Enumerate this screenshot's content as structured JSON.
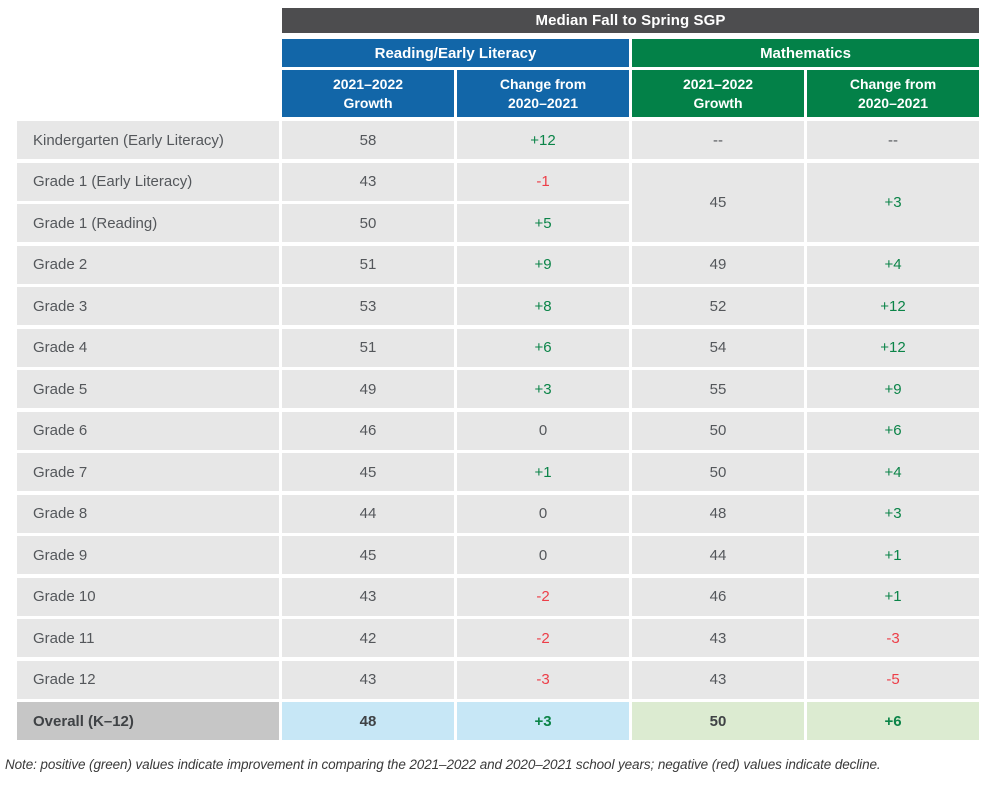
{
  "table": {
    "title": "Median Fall to Spring SGP",
    "groups": [
      {
        "label": "Reading/Early Literacy"
      },
      {
        "label": "Mathematics"
      }
    ],
    "columns": [
      {
        "line1": "2021–2022",
        "line2": "Growth"
      },
      {
        "line1": "Change from",
        "line2": "2020–2021"
      },
      {
        "line1": "2021–2022",
        "line2": "Growth"
      },
      {
        "line1": "Change from",
        "line2": "2020–2021"
      }
    ],
    "rows": [
      {
        "label": "Kindergarten (Early Literacy)",
        "reading_growth": "58",
        "reading_change": "+12",
        "math_growth": "--",
        "math_change": "--"
      },
      {
        "label": "Grade 1 (Early Literacy)",
        "reading_growth": "43",
        "reading_change": "-1"
      },
      {
        "label": "Grade 1 (Reading)",
        "reading_growth": "50",
        "reading_change": "+5"
      },
      {
        "label": "Grade 2",
        "reading_growth": "51",
        "reading_change": "+9",
        "math_growth": "49",
        "math_change": "+4"
      },
      {
        "label": "Grade 3",
        "reading_growth": "53",
        "reading_change": "+8",
        "math_growth": "52",
        "math_change": "+12"
      },
      {
        "label": "Grade 4",
        "reading_growth": "51",
        "reading_change": "+6",
        "math_growth": "54",
        "math_change": "+12"
      },
      {
        "label": "Grade 5",
        "reading_growth": "49",
        "reading_change": "+3",
        "math_growth": "55",
        "math_change": "+9"
      },
      {
        "label": "Grade 6",
        "reading_growth": "46",
        "reading_change": "0",
        "math_growth": "50",
        "math_change": "+6"
      },
      {
        "label": "Grade 7",
        "reading_growth": "45",
        "reading_change": "+1",
        "math_growth": "50",
        "math_change": "+4"
      },
      {
        "label": "Grade 8",
        "reading_growth": "44",
        "reading_change": "0",
        "math_growth": "48",
        "math_change": "+3"
      },
      {
        "label": "Grade 9",
        "reading_growth": "45",
        "reading_change": "0",
        "math_growth": "44",
        "math_change": "+1"
      },
      {
        "label": "Grade 10",
        "reading_growth": "43",
        "reading_change": "-2",
        "math_growth": "46",
        "math_change": "+1"
      },
      {
        "label": "Grade 11",
        "reading_growth": "42",
        "reading_change": "-2",
        "math_growth": "43",
        "math_change": "-3"
      },
      {
        "label": "Grade 12",
        "reading_growth": "43",
        "reading_change": "-3",
        "math_growth": "43",
        "math_change": "-5"
      }
    ],
    "merged_math": {
      "growth": "45",
      "change": "+3"
    },
    "overall": {
      "label": "Overall (K–12)",
      "reading_growth": "48",
      "reading_change": "+3",
      "math_growth": "50",
      "math_change": "+6"
    }
  },
  "note": "Note: positive (green) values indicate improvement in comparing the 2021–2022 and 2020–2021 school years; negative (red) values indicate decline.",
  "colors": {
    "title_bar": "#4d4d4f",
    "reading_blue": "#1266a8",
    "math_green": "#038148",
    "positive_text": "#0b8448",
    "negative_text": "#ed3e48",
    "row_bg": "#e7e7e7",
    "overall_label_bg": "#c6c6c6",
    "overall_reading_bg": "#c7e7f6",
    "overall_math_bg": "#dcebd1"
  },
  "chart_data": {
    "type": "table",
    "title": "Median Fall to Spring SGP",
    "column_groups": [
      "Reading/Early Literacy",
      "Mathematics"
    ],
    "columns": [
      "2021–2022 Growth",
      "Change from 2020–2021",
      "2021–2022 Growth",
      "Change from 2020–2021"
    ],
    "rows": [
      [
        "Kindergarten (Early Literacy)",
        "58",
        "+12",
        "--",
        "--"
      ],
      [
        "Grade 1 (Early Literacy)",
        "43",
        "-1",
        "45",
        "+3"
      ],
      [
        "Grade 1 (Reading)",
        "50",
        "+5",
        "45",
        "+3"
      ],
      [
        "Grade 2",
        "51",
        "+9",
        "49",
        "+4"
      ],
      [
        "Grade 3",
        "53",
        "+8",
        "52",
        "+12"
      ],
      [
        "Grade 4",
        "51",
        "+6",
        "54",
        "+12"
      ],
      [
        "Grade 5",
        "49",
        "+3",
        "55",
        "+9"
      ],
      [
        "Grade 6",
        "46",
        "0",
        "50",
        "+6"
      ],
      [
        "Grade 7",
        "45",
        "+1",
        "50",
        "+4"
      ],
      [
        "Grade 8",
        "44",
        "0",
        "48",
        "+3"
      ],
      [
        "Grade 9",
        "45",
        "0",
        "44",
        "+1"
      ],
      [
        "Grade 10",
        "43",
        "-2",
        "46",
        "+1"
      ],
      [
        "Grade 11",
        "42",
        "-2",
        "43",
        "-3"
      ],
      [
        "Grade 12",
        "43",
        "-3",
        "43",
        "-5"
      ],
      [
        "Overall (K–12)",
        "48",
        "+3",
        "50",
        "+6"
      ]
    ],
    "layout_note": "Mathematics values 45 and +3 are single merged cells spanning the Grade 1 (Early Literacy) and Grade 1 (Reading) rows."
  }
}
